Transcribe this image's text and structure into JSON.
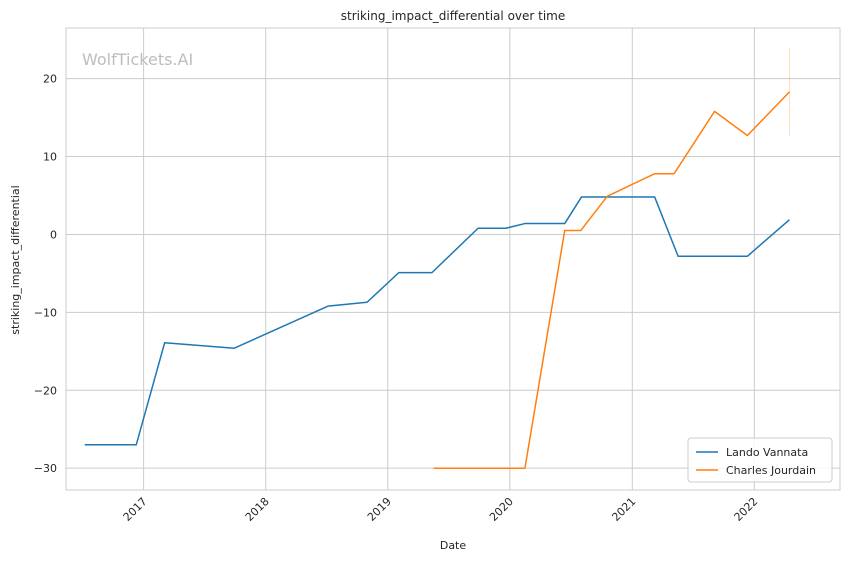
{
  "chart_data": {
    "type": "line",
    "title": "striking_impact_differential over time",
    "xlabel": "Date",
    "ylabel": "striking_impact_differential",
    "watermark": "WolfTickets.AI",
    "grid": true,
    "legend_position": "bottom-right",
    "xlim": [
      "2016-05-14",
      "2022-09-14"
    ],
    "ylim": [
      -32.8,
      26.5
    ],
    "x_ticks": [
      "2017-01-01",
      "2018-01-01",
      "2019-01-01",
      "2020-01-01",
      "2021-01-01",
      "2022-01-01"
    ],
    "x_tick_labels": [
      "2017",
      "2018",
      "2019",
      "2020",
      "2021",
      "2022"
    ],
    "y_ticks": [
      -30,
      -20,
      -10,
      0,
      10,
      20
    ],
    "y_tick_labels": [
      "−30",
      "−20",
      "−10",
      "0",
      "10",
      "20"
    ],
    "series": [
      {
        "name": "Lando Vannata",
        "color": "#1f77b4",
        "points": [
          {
            "x": "2016-07-09",
            "y": -27.0
          },
          {
            "x": "2016-12-10",
            "y": -27.0
          },
          {
            "x": "2017-03-05",
            "y": -13.9
          },
          {
            "x": "2017-09-29",
            "y": -14.6
          },
          {
            "x": "2018-07-06",
            "y": -9.2
          },
          {
            "x": "2018-10-31",
            "y": -8.7
          },
          {
            "x": "2019-02-03",
            "y": -4.9
          },
          {
            "x": "2019-05-13",
            "y": -4.9
          },
          {
            "x": "2019-09-28",
            "y": 0.8
          },
          {
            "x": "2019-12-20",
            "y": 0.8
          },
          {
            "x": "2020-02-15",
            "y": 1.4
          },
          {
            "x": "2020-06-13",
            "y": 1.4
          },
          {
            "x": "2020-08-02",
            "y": 4.8
          },
          {
            "x": "2021-03-09",
            "y": 4.8
          },
          {
            "x": "2021-05-18",
            "y": -2.8
          },
          {
            "x": "2021-12-11",
            "y": -2.8
          },
          {
            "x": "2022-04-16",
            "y": 1.9
          }
        ]
      },
      {
        "name": "Charles Jourdain",
        "color": "#ff7f0e",
        "points": [
          {
            "x": "2019-05-18",
            "y": -30.0
          },
          {
            "x": "2020-02-15",
            "y": -30.0
          },
          {
            "x": "2020-06-13",
            "y": 0.5
          },
          {
            "x": "2020-07-31",
            "y": 0.5
          },
          {
            "x": "2020-10-18",
            "y": 4.9
          },
          {
            "x": "2021-03-09",
            "y": 7.8
          },
          {
            "x": "2021-05-06",
            "y": 7.8
          },
          {
            "x": "2021-09-04",
            "y": 15.8
          },
          {
            "x": "2021-12-11",
            "y": 12.7
          },
          {
            "x": "2022-04-16",
            "y": 18.3
          }
        ],
        "error_band": {
          "x": "2022-04-16",
          "low": 12.7,
          "high": 23.9
        }
      }
    ]
  }
}
